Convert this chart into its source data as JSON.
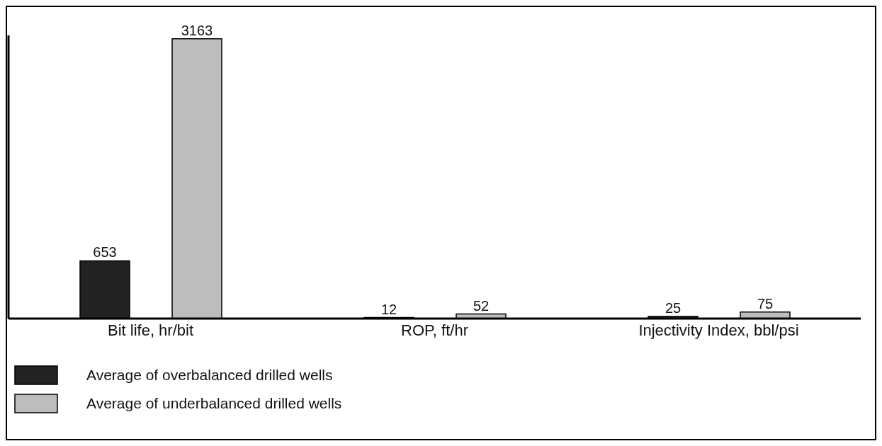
{
  "chart_data": {
    "type": "bar",
    "categories": [
      "Bit life, hr/bit",
      "ROP, ft/hr",
      "Injectivity Index, bbl/psi"
    ],
    "series": [
      {
        "name": "Average of overbalanced drilled wells",
        "color": "#222222",
        "values": [
          653,
          12,
          25
        ]
      },
      {
        "name": "Average of underbalanced drilled wells",
        "color": "#bdbdbd",
        "values": [
          3163,
          52,
          75
        ]
      }
    ],
    "data_labels": true,
    "grid": false,
    "legend": "bottom left"
  }
}
